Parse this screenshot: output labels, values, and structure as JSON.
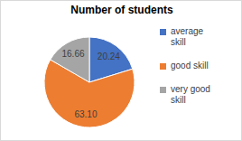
{
  "chart_data": {
    "type": "pie",
    "title": "Number of students",
    "categories": [
      "average skill",
      "good skill",
      "very good skill"
    ],
    "values": [
      20.24,
      63.1,
      16.66
    ],
    "value_labels": [
      "20.24",
      "63.10",
      "16.66"
    ],
    "colors": [
      "#4472c4",
      "#ed7d31",
      "#a5a5a5"
    ],
    "data_labels": true,
    "legend": "right"
  }
}
